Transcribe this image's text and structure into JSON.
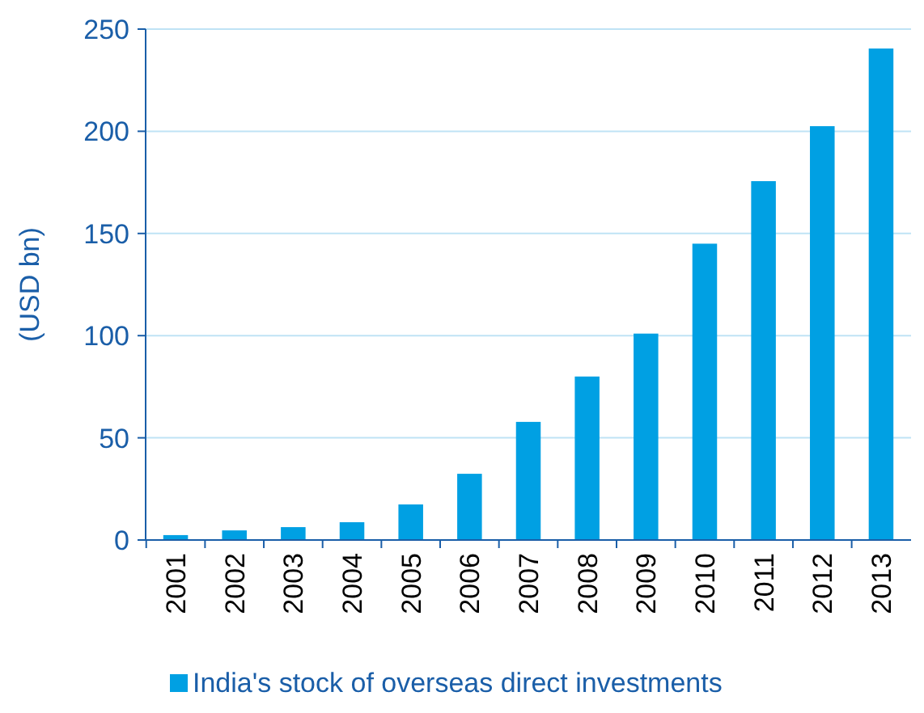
{
  "chart_data": {
    "type": "bar",
    "ylabel": "(USD bn)",
    "categories": [
      "2001",
      "2002",
      "2003",
      "2004",
      "2005",
      "2006",
      "2007",
      "2008",
      "2009",
      "2010",
      "2011",
      "2012",
      "2013"
    ],
    "series": [
      {
        "name": "India's stock of overseas direct investments",
        "color": "#00a0e3",
        "values": [
          2.4,
          4.7,
          6.3,
          8.7,
          17.4,
          32.4,
          57.8,
          80,
          101,
          145,
          175.6,
          202.5,
          240.5
        ]
      }
    ],
    "ylim": [
      0,
      250
    ],
    "yticks": [
      0,
      50,
      100,
      150,
      200,
      250
    ],
    "grid": "y",
    "legend": "bottom"
  }
}
